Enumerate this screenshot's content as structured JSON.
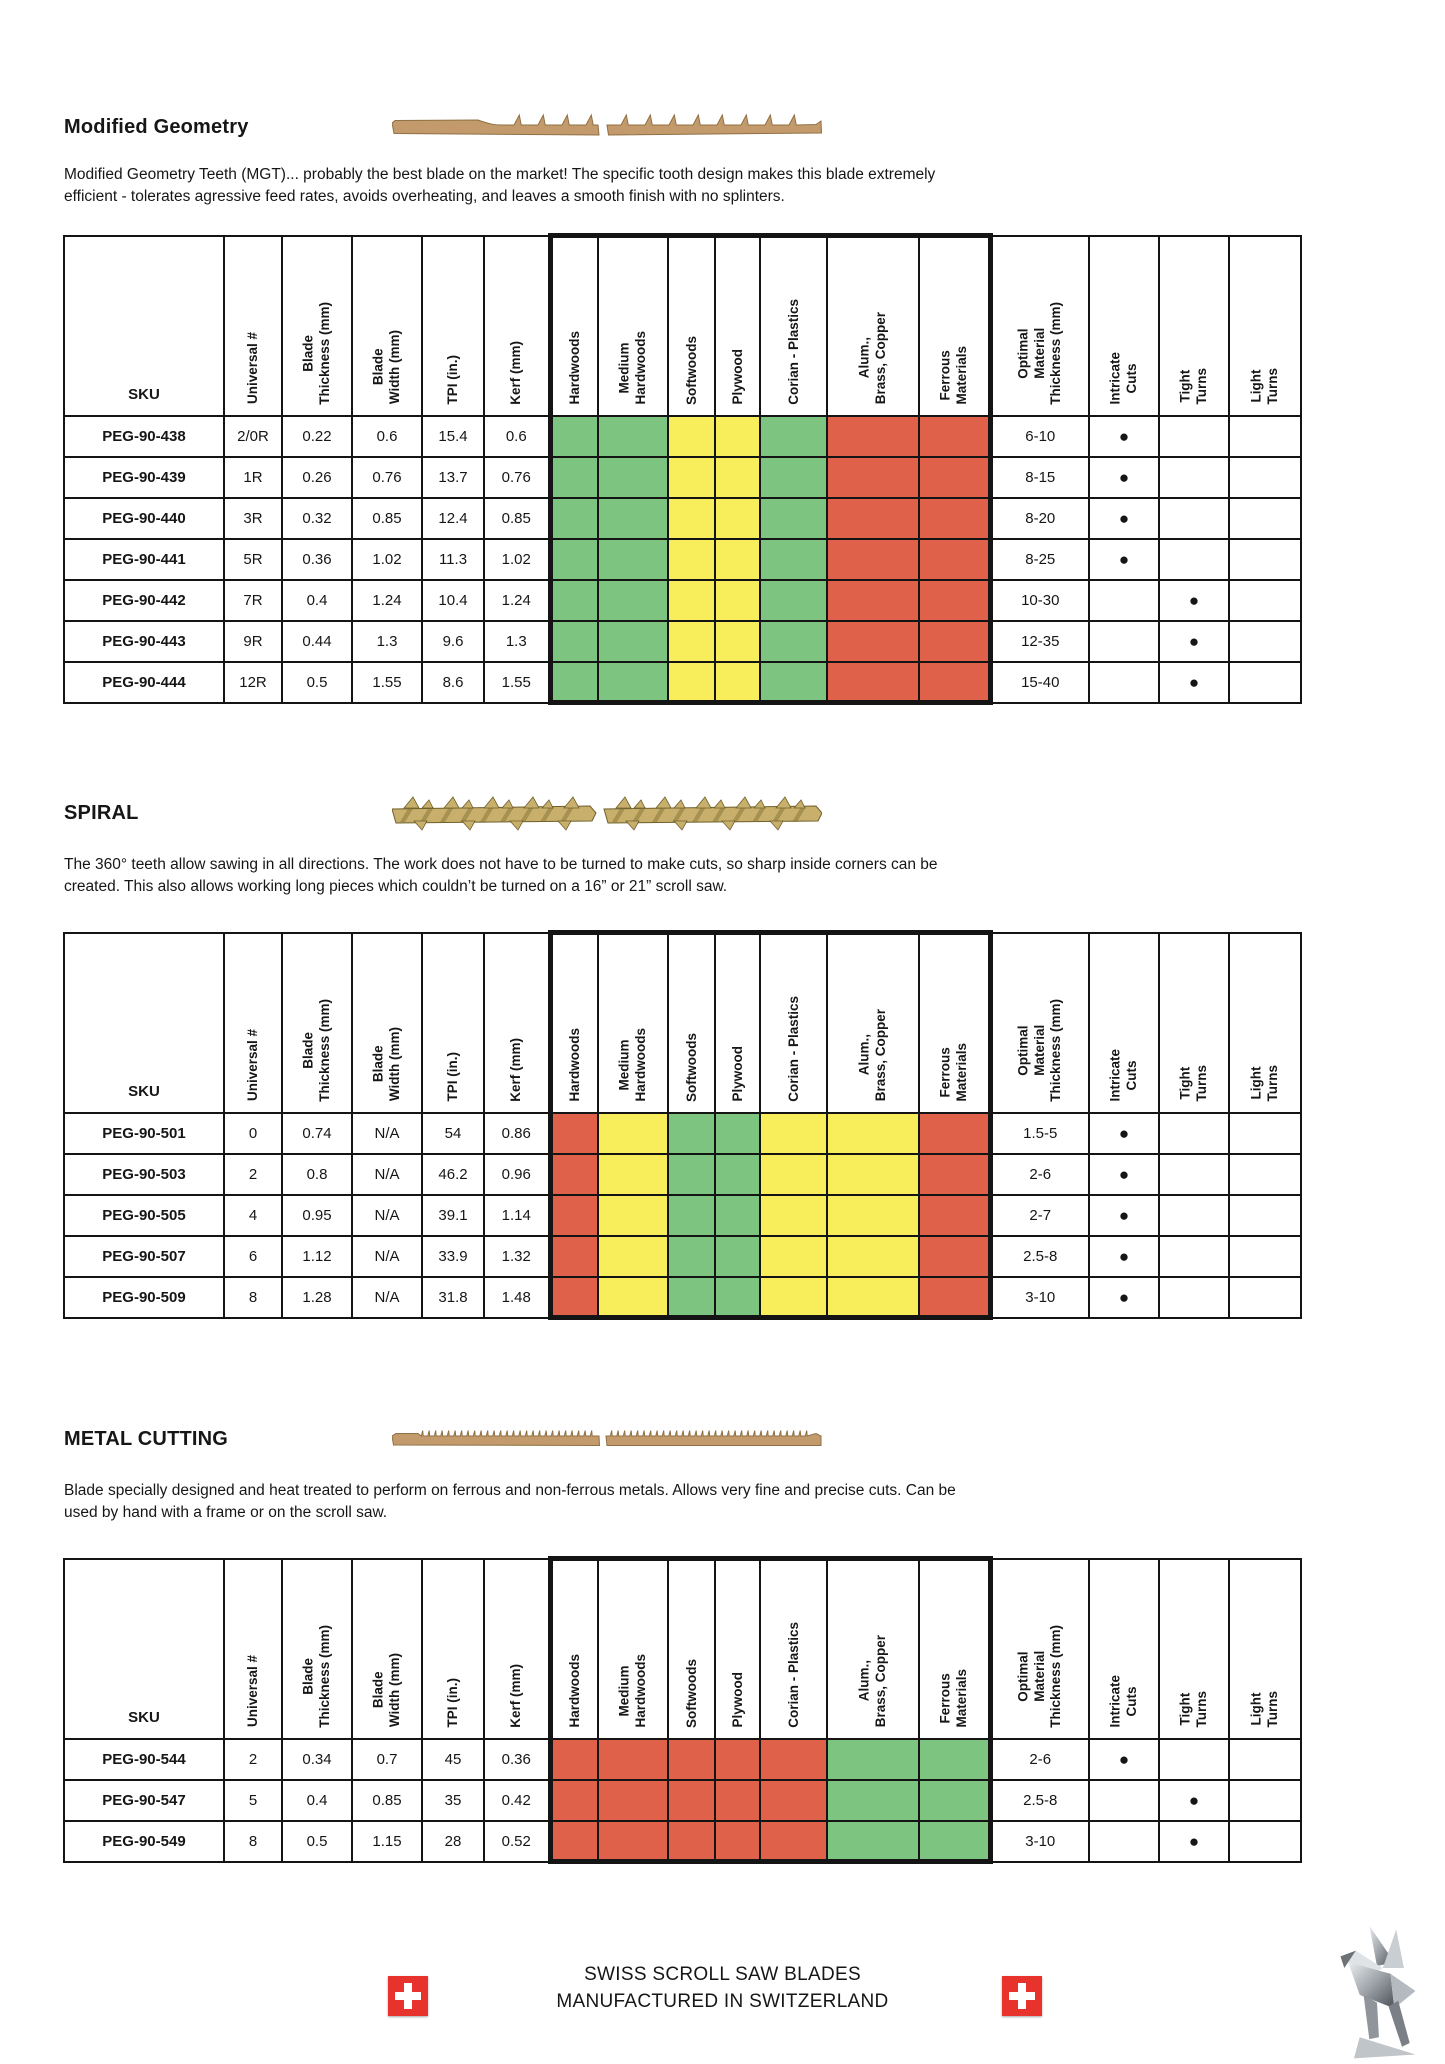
{
  "footer": {
    "line1": "SWISS SCROLL SAW BLADES",
    "line2": "MANUFACTURED IN SWITZERLAND"
  },
  "colors": {
    "green": "#7cc47f",
    "yellow": "#f8ee5b",
    "red": "#e06149",
    "flag_red": "#e8332d"
  },
  "mark_glyph": "●",
  "columns": [
    {
      "key": "sku",
      "label": "SKU"
    },
    {
      "key": "universal_number",
      "label": "Universal #"
    },
    {
      "key": "blade_thickness_mm",
      "label": "Blade\nThickness (mm)"
    },
    {
      "key": "blade_width_mm",
      "label": "Blade\nWidth (mm)"
    },
    {
      "key": "tpi_in",
      "label": "TPI (in.)"
    },
    {
      "key": "kerf_mm",
      "label": "Kerf (mm)"
    },
    {
      "key": "hardwoods",
      "label": "Hardwoods",
      "material": true
    },
    {
      "key": "medium_hardwoods",
      "label": "Medium\nHardwoods",
      "material": true
    },
    {
      "key": "softwoods",
      "label": "Softwoods",
      "material": true
    },
    {
      "key": "plywood",
      "label": "Plywood",
      "material": true
    },
    {
      "key": "corian_plastics",
      "label": "Corian - Plastics",
      "material": true
    },
    {
      "key": "alum_brass_copper",
      "label": "Alum.,\nBrass, Copper",
      "material": true
    },
    {
      "key": "ferrous_materials",
      "label": "Ferrous\nMaterials",
      "material": true
    },
    {
      "key": "optimal_material_thickness_mm",
      "label": "Optimal\nMaterial\nThickness (mm)"
    },
    {
      "key": "intricate_cuts",
      "label": "Intricate\nCuts"
    },
    {
      "key": "tight_turns",
      "label": "Tight\nTurns"
    },
    {
      "key": "light_turns",
      "label": "Light\nTurns"
    }
  ],
  "sections": [
    {
      "id": "modified-geometry",
      "title": "Modified Geometry",
      "description": "Modified Geometry Teeth (MGT)... probably the best blade on the market! The specific tooth design makes this blade extremely\nefficient - tolerates agressive feed rates, avoids overheating, and leaves a smooth finish with no splinters.",
      "material_colors": [
        "green",
        "green",
        "yellow",
        "yellow",
        "green",
        "red",
        "red"
      ],
      "rows": [
        {
          "sku": "PEG-90-438",
          "universal_number": "2/0R",
          "blade_thickness_mm": "0.22",
          "blade_width_mm": "0.6",
          "tpi_in": "15.4",
          "kerf_mm": "0.6",
          "optimal_material_thickness_mm": "6-10",
          "intricate_cuts": true,
          "tight_turns": false,
          "light_turns": false
        },
        {
          "sku": "PEG-90-439",
          "universal_number": "1R",
          "blade_thickness_mm": "0.26",
          "blade_width_mm": "0.76",
          "tpi_in": "13.7",
          "kerf_mm": "0.76",
          "optimal_material_thickness_mm": "8-15",
          "intricate_cuts": true,
          "tight_turns": false,
          "light_turns": false
        },
        {
          "sku": "PEG-90-440",
          "universal_number": "3R",
          "blade_thickness_mm": "0.32",
          "blade_width_mm": "0.85",
          "tpi_in": "12.4",
          "kerf_mm": "0.85",
          "optimal_material_thickness_mm": "8-20",
          "intricate_cuts": true,
          "tight_turns": false,
          "light_turns": false
        },
        {
          "sku": "PEG-90-441",
          "universal_number": "5R",
          "blade_thickness_mm": "0.36",
          "blade_width_mm": "1.02",
          "tpi_in": "11.3",
          "kerf_mm": "1.02",
          "optimal_material_thickness_mm": "8-25",
          "intricate_cuts": true,
          "tight_turns": false,
          "light_turns": false
        },
        {
          "sku": "PEG-90-442",
          "universal_number": "7R",
          "blade_thickness_mm": "0.4",
          "blade_width_mm": "1.24",
          "tpi_in": "10.4",
          "kerf_mm": "1.24",
          "optimal_material_thickness_mm": "10-30",
          "intricate_cuts": false,
          "tight_turns": true,
          "light_turns": false
        },
        {
          "sku": "PEG-90-443",
          "universal_number": "9R",
          "blade_thickness_mm": "0.44",
          "blade_width_mm": "1.3",
          "tpi_in": "9.6",
          "kerf_mm": "1.3",
          "optimal_material_thickness_mm": "12-35",
          "intricate_cuts": false,
          "tight_turns": true,
          "light_turns": false
        },
        {
          "sku": "PEG-90-444",
          "universal_number": "12R",
          "blade_thickness_mm": "0.5",
          "blade_width_mm": "1.55",
          "tpi_in": "8.6",
          "kerf_mm": "1.55",
          "optimal_material_thickness_mm": "15-40",
          "intricate_cuts": false,
          "tight_turns": true,
          "light_turns": false
        }
      ]
    },
    {
      "id": "spiral",
      "title": "SPIRAL",
      "description": "The 360° teeth allow sawing in all directions. The work does not have to be turned to make cuts, so sharp inside corners can be\ncreated. This also allows working long pieces which couldn’t be turned on a 16” or 21” scroll saw.",
      "material_colors": [
        "red",
        "yellow",
        "green",
        "green",
        "yellow",
        "yellow",
        "red"
      ],
      "rows": [
        {
          "sku": "PEG-90-501",
          "universal_number": "0",
          "blade_thickness_mm": "0.74",
          "blade_width_mm": "N/A",
          "tpi_in": "54",
          "kerf_mm": "0.86",
          "optimal_material_thickness_mm": "1.5-5",
          "intricate_cuts": true,
          "tight_turns": false,
          "light_turns": false
        },
        {
          "sku": "PEG-90-503",
          "universal_number": "2",
          "blade_thickness_mm": "0.8",
          "blade_width_mm": "N/A",
          "tpi_in": "46.2",
          "kerf_mm": "0.96",
          "optimal_material_thickness_mm": "2-6",
          "intricate_cuts": true,
          "tight_turns": false,
          "light_turns": false
        },
        {
          "sku": "PEG-90-505",
          "universal_number": "4",
          "blade_thickness_mm": "0.95",
          "blade_width_mm": "N/A",
          "tpi_in": "39.1",
          "kerf_mm": "1.14",
          "optimal_material_thickness_mm": "2-7",
          "intricate_cuts": true,
          "tight_turns": false,
          "light_turns": false
        },
        {
          "sku": "PEG-90-507",
          "universal_number": "6",
          "blade_thickness_mm": "1.12",
          "blade_width_mm": "N/A",
          "tpi_in": "33.9",
          "kerf_mm": "1.32",
          "optimal_material_thickness_mm": "2.5-8",
          "intricate_cuts": true,
          "tight_turns": false,
          "light_turns": false
        },
        {
          "sku": "PEG-90-509",
          "universal_number": "8",
          "blade_thickness_mm": "1.28",
          "blade_width_mm": "N/A",
          "tpi_in": "31.8",
          "kerf_mm": "1.48",
          "optimal_material_thickness_mm": "3-10",
          "intricate_cuts": true,
          "tight_turns": false,
          "light_turns": false
        }
      ]
    },
    {
      "id": "metal-cutting",
      "title": "METAL CUTTING",
      "description": "Blade specially designed and heat treated to perform on ferrous and non-ferrous metals. Allows very fine and precise cuts. Can be\nused by hand with a frame or on the scroll saw.",
      "material_colors": [
        "red",
        "red",
        "red",
        "red",
        "red",
        "green",
        "green"
      ],
      "rows": [
        {
          "sku": "PEG-90-544",
          "universal_number": "2",
          "blade_thickness_mm": "0.34",
          "blade_width_mm": "0.7",
          "tpi_in": "45",
          "kerf_mm": "0.36",
          "optimal_material_thickness_mm": "2-6",
          "intricate_cuts": true,
          "tight_turns": false,
          "light_turns": false
        },
        {
          "sku": "PEG-90-547",
          "universal_number": "5",
          "blade_thickness_mm": "0.4",
          "blade_width_mm": "0.85",
          "tpi_in": "35",
          "kerf_mm": "0.42",
          "optimal_material_thickness_mm": "2.5-8",
          "intricate_cuts": false,
          "tight_turns": true,
          "light_turns": false
        },
        {
          "sku": "PEG-90-549",
          "universal_number": "8",
          "blade_thickness_mm": "0.5",
          "blade_width_mm": "1.15",
          "tpi_in": "28",
          "kerf_mm": "0.52",
          "optimal_material_thickness_mm": "3-10",
          "intricate_cuts": false,
          "tight_turns": true,
          "light_turns": false
        }
      ]
    }
  ]
}
